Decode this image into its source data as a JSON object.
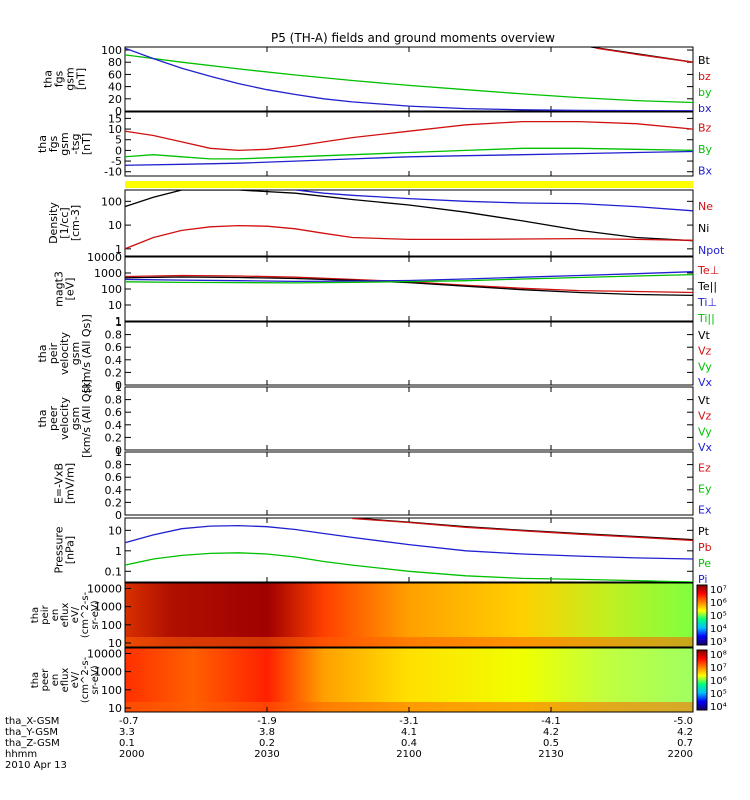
{
  "title": "P5 (TH-A) fields and ground moments overview",
  "chart_data": {
    "type": "line",
    "x_ticks": [
      "2000",
      "2030",
      "2100",
      "2130",
      "2200"
    ],
    "panels": [
      {
        "ylabel": [
          "tha",
          "fgs",
          "gsm",
          "[nT]"
        ],
        "yticks": [
          0,
          20,
          40,
          60,
          80,
          100
        ],
        "ylim": [
          0,
          105
        ],
        "scale": "linear",
        "legend": [
          {
            "name": "Bt",
            "color": "#000000"
          },
          {
            "name": "bz",
            "color": "#d01010"
          },
          {
            "name": "by",
            "color": "#00c000"
          },
          {
            "name": "bx",
            "color": "#2020d0"
          }
        ],
        "series": [
          {
            "name": "Bt",
            "color": "#000000",
            "x": [
              0.82,
              0.9,
              1.0
            ],
            "y": [
              105,
              94,
              80
            ]
          },
          {
            "name": "bz",
            "color": "#d01010",
            "x": [
              0.83,
              0.9,
              1.0
            ],
            "y": [
              103,
              93,
              80
            ]
          },
          {
            "name": "by",
            "color": "#00c000",
            "x": [
              0.0,
              0.1,
              0.2,
              0.3,
              0.4,
              0.5,
              0.6,
              0.7,
              0.8,
              0.9,
              1.0
            ],
            "y": [
              92,
              80,
              69,
              59,
              50,
              42,
              35,
              28,
              22,
              17,
              14
            ]
          },
          {
            "name": "bx",
            "color": "#2020d0",
            "x": [
              0.0,
              0.05,
              0.1,
              0.15,
              0.2,
              0.25,
              0.3,
              0.35,
              0.4,
              0.5,
              0.6,
              0.7,
              0.8,
              0.9,
              1.0
            ],
            "y": [
              103,
              86,
              70,
              57,
              45,
              35,
              27,
              20,
              15,
              8,
              4,
              2,
              1,
              0.5,
              0.3
            ]
          }
        ]
      },
      {
        "ylabel": [
          "tha",
          "fgs",
          "gsm",
          "-tsg",
          "[nT]"
        ],
        "yticks": [
          -10,
          -5,
          0,
          5,
          10,
          15
        ],
        "ylim": [
          -12,
          18
        ],
        "scale": "linear",
        "legend": [
          {
            "name": "Bz",
            "color": "#d01010"
          },
          {
            "name": "By",
            "color": "#00c000"
          },
          {
            "name": "Bx",
            "color": "#2020d0"
          }
        ],
        "series": [
          {
            "name": "Bz",
            "color": "#d01010",
            "x": [
              0.0,
              0.05,
              0.1,
              0.15,
              0.2,
              0.25,
              0.3,
              0.35,
              0.4,
              0.5,
              0.6,
              0.7,
              0.8,
              0.9,
              1.0
            ],
            "y": [
              9,
              7,
              4,
              1,
              0,
              0.5,
              2,
              4,
              6,
              9,
              12,
              13.5,
              13.5,
              12.5,
              10
            ]
          },
          {
            "name": "By",
            "color": "#00c000",
            "x": [
              0.0,
              0.05,
              0.1,
              0.15,
              0.2,
              0.3,
              0.4,
              0.5,
              0.6,
              0.7,
              0.8,
              0.9,
              1.0
            ],
            "y": [
              -3,
              -2,
              -3,
              -4,
              -4,
              -3,
              -2,
              -1,
              0,
              1,
              1,
              0.5,
              0
            ]
          },
          {
            "name": "Bx",
            "color": "#2020d0",
            "x": [
              0.0,
              0.1,
              0.2,
              0.3,
              0.4,
              0.5,
              0.6,
              0.7,
              0.8,
              0.9,
              1.0
            ],
            "y": [
              -7,
              -6.5,
              -6,
              -5,
              -4,
              -3,
              -2.5,
              -2,
              -1.5,
              -1,
              -0.5
            ]
          }
        ]
      },
      {
        "ylabel": [
          "Density",
          "[1/cc]",
          "[cm-3]"
        ],
        "yticks": [
          1,
          10,
          100
        ],
        "ylim": [
          0.5,
          300
        ],
        "scale": "log",
        "legend": [
          {
            "name": "Ne",
            "color": "#d01010"
          },
          {
            "name": "Ni",
            "color": "#000000"
          },
          {
            "name": "Npot",
            "color": "#2020d0"
          }
        ],
        "series": [
          {
            "name": "Ni",
            "color": "#000000",
            "x": [
              0.0,
              0.05,
              0.1,
              0.2,
              0.3,
              0.4,
              0.5,
              0.6,
              0.7,
              0.8,
              0.9,
              1.0
            ],
            "y": [
              60,
              150,
              300,
              300,
              220,
              120,
              70,
              35,
              15,
              6,
              3,
              2.2
            ]
          },
          {
            "name": "Npot",
            "color": "#2020d0",
            "x": [
              0.3,
              0.35,
              0.4,
              0.5,
              0.6,
              0.7,
              0.8,
              0.9,
              1.0
            ],
            "y": [
              300,
              220,
              180,
              130,
              100,
              85,
              80,
              60,
              40
            ]
          },
          {
            "name": "Ne",
            "color": "#d01010",
            "x": [
              0.0,
              0.05,
              0.1,
              0.15,
              0.2,
              0.25,
              0.3,
              0.35,
              0.4,
              0.5,
              0.6,
              0.7,
              0.8,
              0.9,
              1.0
            ],
            "y": [
              1,
              3,
              6,
              8.5,
              9.5,
              9,
              7,
              4.5,
              3,
              2.5,
              2.5,
              2.6,
              2.7,
              2.5,
              2.3
            ]
          }
        ]
      },
      {
        "ylabel": [
          "magt3",
          "[eV]"
        ],
        "yticks": [
          1,
          10,
          100,
          1000,
          10000
        ],
        "ylim": [
          1,
          10000
        ],
        "scale": "log",
        "legend": [
          {
            "name": "Te⊥",
            "color": "#d01010"
          },
          {
            "name": "Te||",
            "color": "#000000"
          },
          {
            "name": "Ti⊥",
            "color": "#2020d0"
          },
          {
            "name": "Ti||",
            "color": "#00c000"
          }
        ],
        "series": [
          {
            "name": "Te⊥",
            "color": "#d01010",
            "x": [
              0.0,
              0.1,
              0.2,
              0.3,
              0.4,
              0.5,
              0.6,
              0.7,
              0.8,
              0.9,
              1.0
            ],
            "y": [
              600,
              700,
              650,
              550,
              400,
              280,
              170,
              110,
              80,
              70,
              60
            ]
          },
          {
            "name": "Te||",
            "color": "#000000",
            "x": [
              0.0,
              0.1,
              0.2,
              0.3,
              0.4,
              0.5,
              0.6,
              0.7,
              0.8,
              0.9,
              1.0
            ],
            "y": [
              500,
              560,
              520,
              450,
              350,
              250,
              150,
              90,
              60,
              45,
              40
            ]
          },
          {
            "name": "Ti⊥",
            "color": "#2020d0",
            "x": [
              0.0,
              0.1,
              0.2,
              0.3,
              0.4,
              0.5,
              0.6,
              0.7,
              0.8,
              0.9,
              1.0
            ],
            "y": [
              400,
              360,
              330,
              300,
              310,
              340,
              420,
              550,
              700,
              900,
              1200
            ]
          },
          {
            "name": "Ti||",
            "color": "#00c000",
            "x": [
              0.0,
              0.1,
              0.2,
              0.3,
              0.4,
              0.5,
              0.6,
              0.7,
              0.8,
              0.9,
              1.0
            ],
            "y": [
              280,
              260,
              250,
              240,
              260,
              290,
              330,
              420,
              520,
              650,
              800
            ]
          }
        ]
      },
      {
        "ylabel": [
          "tha",
          "peir",
          "velocity",
          "gsm",
          "[km/s (All Qs)]"
        ],
        "yticks": [
          0.0,
          0.2,
          0.4,
          0.6,
          0.8,
          1.0
        ],
        "ylim": [
          0,
          1
        ],
        "scale": "linear",
        "legend": [
          {
            "name": "Vt",
            "color": "#000000"
          },
          {
            "name": "Vz",
            "color": "#d01010"
          },
          {
            "name": "Vy",
            "color": "#00c000"
          },
          {
            "name": "Vx",
            "color": "#2020d0"
          }
        ],
        "series": []
      },
      {
        "ylabel": [
          "tha",
          "peer",
          "velocity",
          "gsm",
          "[km/s (All Qs)]"
        ],
        "yticks": [
          0.0,
          0.2,
          0.4,
          0.6,
          0.8,
          1.0
        ],
        "ylim": [
          0,
          1
        ],
        "scale": "linear",
        "legend": [
          {
            "name": "Vt",
            "color": "#000000"
          },
          {
            "name": "Vz",
            "color": "#d01010"
          },
          {
            "name": "Vy",
            "color": "#00c000"
          },
          {
            "name": "Vx",
            "color": "#2020d0"
          }
        ],
        "series": []
      },
      {
        "ylabel": [
          "E=-VxB",
          "[mV/m]"
        ],
        "yticks": [
          0.0,
          0.2,
          0.4,
          0.6,
          0.8,
          1.0
        ],
        "ylim": [
          0,
          1
        ],
        "scale": "linear",
        "legend": [
          {
            "name": "Ez",
            "color": "#d01010"
          },
          {
            "name": "Ey",
            "color": "#00c000"
          },
          {
            "name": "Ex",
            "color": "#2020d0"
          }
        ],
        "series": []
      },
      {
        "ylabel": [
          "Pressure",
          "[nPa]"
        ],
        "yticks": [
          0.1,
          1.0,
          10.0
        ],
        "ylim": [
          0.03,
          40
        ],
        "scale": "log",
        "legend": [
          {
            "name": "Pt",
            "color": "#000000"
          },
          {
            "name": "Pb",
            "color": "#d01010"
          },
          {
            "name": "Pe",
            "color": "#00c000"
          },
          {
            "name": "Pi",
            "color": "#2020d0"
          }
        ],
        "series": [
          {
            "name": "Pt",
            "color": "#000000",
            "x": [
              0.4,
              0.5,
              0.6,
              0.7,
              0.8,
              0.9,
              1.0
            ],
            "y": [
              40,
              25,
              15,
              10,
              7,
              5,
              3.5
            ]
          },
          {
            "name": "Pb",
            "color": "#d01010",
            "x": [
              0.4,
              0.5,
              0.6,
              0.7,
              0.8,
              0.9,
              1.0
            ],
            "y": [
              38,
              24,
              14,
              9.5,
              6.5,
              4.6,
              3.2
            ]
          },
          {
            "name": "Pi",
            "color": "#2020d0",
            "x": [
              0.0,
              0.05,
              0.1,
              0.15,
              0.2,
              0.25,
              0.3,
              0.35,
              0.4,
              0.5,
              0.6,
              0.7,
              0.8,
              0.9,
              1.0
            ],
            "y": [
              2.5,
              6,
              12,
              16,
              17,
              15,
              11,
              7,
              4.5,
              2,
              1,
              0.7,
              0.55,
              0.45,
              0.4
            ]
          },
          {
            "name": "Pe",
            "color": "#00c000",
            "x": [
              0.0,
              0.05,
              0.1,
              0.15,
              0.2,
              0.25,
              0.3,
              0.35,
              0.4,
              0.5,
              0.6,
              0.7,
              0.8,
              0.9,
              1.0
            ],
            "y": [
              0.2,
              0.4,
              0.6,
              0.75,
              0.8,
              0.7,
              0.5,
              0.3,
              0.2,
              0.1,
              0.06,
              0.045,
              0.04,
              0.035,
              0.03
            ]
          }
        ]
      }
    ],
    "spectrograms": [
      {
        "ylabel": [
          "tha",
          "peir",
          "en",
          "eflux",
          "eV/",
          "(cm^2-s-",
          "sr-eV)"
        ],
        "yticks": [
          "10",
          "100",
          "1000",
          "10000"
        ],
        "cbar_ticks": [
          "10³",
          "10⁴",
          "10⁵",
          "10⁶",
          "10⁷"
        ]
      },
      {
        "ylabel": [
          "tha",
          "peer",
          "en",
          "eflux",
          "eV/",
          "(cm^2-s-",
          "sr-eV)"
        ],
        "yticks": [
          "10",
          "100",
          "1000",
          "10000"
        ],
        "cbar_ticks": [
          "10⁴",
          "10⁵",
          "10⁶",
          "10⁷",
          "10⁸"
        ]
      }
    ]
  },
  "footer": {
    "labels": [
      "tha_X-GSM",
      "tha_Y-GSM",
      "tha_Z-GSM",
      "hhmm",
      "2010 Apr 13"
    ],
    "columns": [
      [
        "-0.7",
        "3.3",
        "0.1",
        "2000"
      ],
      [
        "-1.9",
        "3.8",
        "0.2",
        "2030"
      ],
      [
        "-3.1",
        "4.1",
        "0.4",
        "2100"
      ],
      [
        "-4.1",
        "4.2",
        "0.5",
        "2130"
      ],
      [
        "-5.0",
        "4.2",
        "0.7",
        "2200"
      ]
    ]
  }
}
